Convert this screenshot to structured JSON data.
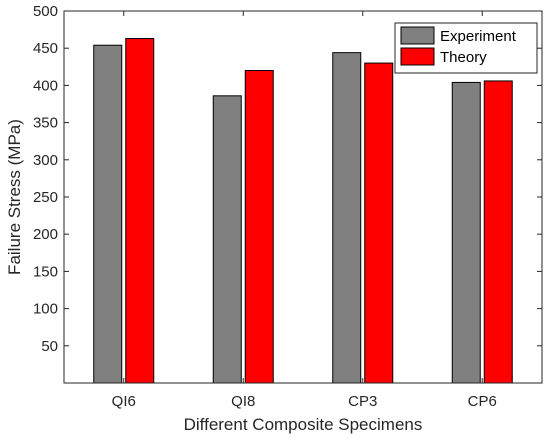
{
  "chart_data": {
    "type": "bar",
    "title": "",
    "xlabel": "Different Composite Specimens",
    "ylabel": "Failure Stress (MPa)",
    "categories": [
      "QI6",
      "QI8",
      "CP3",
      "CP6"
    ],
    "series": [
      {
        "name": "Experiment",
        "values": [
          454,
          386,
          444,
          404
        ],
        "color": "#808080"
      },
      {
        "name": "Theory",
        "values": [
          463,
          420,
          430,
          406
        ],
        "color": "#ff0000"
      }
    ],
    "ylim": [
      0,
      500
    ],
    "yticks": [
      50,
      100,
      150,
      200,
      250,
      300,
      350,
      400,
      450,
      500
    ],
    "grid": false,
    "legend": "top-right"
  }
}
